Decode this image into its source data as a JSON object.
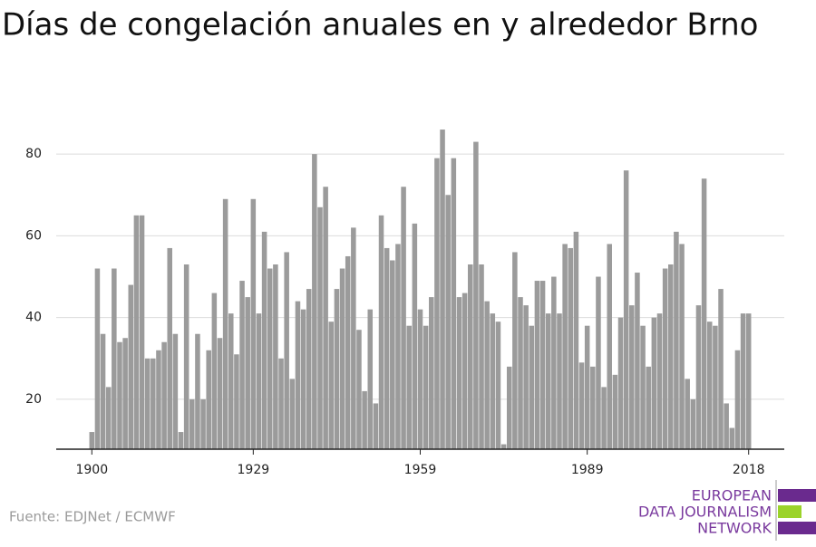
{
  "chart_data": {
    "type": "bar",
    "title": "Días de congelación anuales en y alrededor Brno",
    "source": "Fuente: EDJNet / ECMWF",
    "logo": [
      "EUROPEAN",
      "DATA JOURNALISM",
      "NETWORK"
    ],
    "color": "#9b9b9b",
    "grid": true,
    "x": [
      1900,
      1901,
      1902,
      1903,
      1904,
      1905,
      1906,
      1907,
      1908,
      1909,
      1910,
      1911,
      1912,
      1913,
      1914,
      1915,
      1916,
      1917,
      1918,
      1919,
      1920,
      1921,
      1922,
      1923,
      1924,
      1925,
      1926,
      1927,
      1928,
      1929,
      1930,
      1931,
      1932,
      1933,
      1934,
      1935,
      1936,
      1937,
      1938,
      1939,
      1940,
      1941,
      1942,
      1943,
      1944,
      1945,
      1946,
      1947,
      1948,
      1949,
      1950,
      1951,
      1952,
      1953,
      1954,
      1955,
      1956,
      1957,
      1958,
      1959,
      1960,
      1961,
      1962,
      1963,
      1964,
      1965,
      1966,
      1967,
      1968,
      1969,
      1970,
      1971,
      1972,
      1973,
      1974,
      1975,
      1976,
      1977,
      1978,
      1979,
      1980,
      1981,
      1982,
      1983,
      1984,
      1985,
      1986,
      1987,
      1988,
      1989,
      1990,
      1991,
      1992,
      1993,
      1994,
      1995,
      1996,
      1997,
      1998,
      1999,
      2000,
      2001,
      2002,
      2003,
      2004,
      2005,
      2006,
      2007,
      2008,
      2009,
      2010,
      2011,
      2012,
      2013,
      2014,
      2015,
      2016,
      2017,
      2018
    ],
    "values": [
      12,
      52,
      36,
      23,
      52,
      34,
      35,
      48,
      65,
      65,
      30,
      30,
      32,
      34,
      57,
      36,
      12,
      53,
      20,
      36,
      20,
      32,
      46,
      35,
      69,
      41,
      31,
      49,
      45,
      69,
      41,
      61,
      52,
      53,
      30,
      56,
      25,
      44,
      42,
      47,
      80,
      67,
      72,
      39,
      47,
      52,
      55,
      62,
      37,
      22,
      42,
      19,
      65,
      57,
      54,
      58,
      72,
      38,
      63,
      42,
      38,
      45,
      79,
      86,
      70,
      79,
      45,
      46,
      53,
      83,
      53,
      44,
      41,
      39,
      9,
      28,
      56,
      45,
      43,
      38,
      49,
      49,
      41,
      50,
      41,
      58,
      57,
      61,
      29,
      38,
      28,
      50,
      23,
      58,
      26,
      40,
      76,
      43,
      51,
      38,
      28,
      40,
      41,
      52,
      53,
      61,
      58,
      25,
      20,
      43,
      74,
      39,
      38,
      47,
      19,
      13,
      32,
      41,
      41
    ],
    "xlim": [
      1893.6,
      2024.4
    ],
    "xticks": [
      1900,
      1929,
      1959,
      1989,
      2018
    ],
    "ylim": [
      7.8,
      90
    ],
    "yticks": [
      20,
      40,
      60,
      80
    ]
  }
}
